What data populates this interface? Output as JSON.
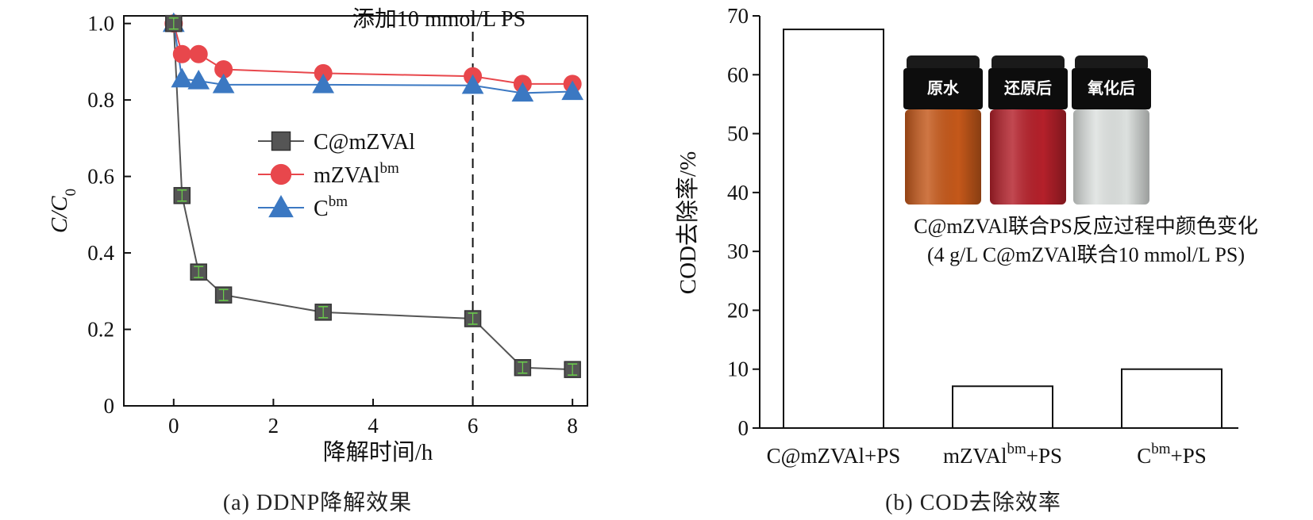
{
  "chart_data": [
    {
      "type": "line",
      "x": [
        0,
        0.167,
        0.5,
        1,
        3,
        6,
        7,
        8
      ],
      "xlabel": "降解时间/h",
      "ylabel": "C/C0",
      "xlim": [
        -1,
        8.3
      ],
      "ylim": [
        0,
        1.02
      ],
      "x_ticks": [
        "0",
        "2",
        "4",
        "6",
        "8"
      ],
      "y_ticks": [
        "0",
        "0.2",
        "0.4",
        "0.6",
        "0.8",
        "1.0"
      ],
      "series": [
        {
          "name": "C@mZVAl",
          "marker": "square",
          "color": "#555555",
          "line_color": "#555555",
          "values": [
            1.0,
            0.55,
            0.35,
            0.29,
            0.245,
            0.228,
            0.1,
            0.095
          ]
        },
        {
          "name": "mZVAl",
          "name_sup": "bm",
          "marker": "circle",
          "color": "#e8474c",
          "line_color": "#e8474c",
          "values": [
            1.0,
            0.92,
            0.92,
            0.88,
            0.87,
            0.862,
            0.842,
            0.842
          ]
        },
        {
          "name": "C",
          "name_sup": "bm",
          "marker": "triangle",
          "color": "#3b78c2",
          "line_color": "#3b78c2",
          "values": [
            1.0,
            0.855,
            0.85,
            0.84,
            0.84,
            0.838,
            0.818,
            0.822
          ]
        }
      ],
      "vline": {
        "x": 6,
        "label": "添加10 mmol/L PS"
      },
      "legend_position": "center",
      "grid": false,
      "caption": "(a) DDNP降解效果"
    },
    {
      "type": "bar",
      "categories": [
        "C@mZVAl+PS",
        "mZVAl+PS",
        "C+PS"
      ],
      "category_parts": [
        {
          "base": "C@mZVAl+PS",
          "sup": "",
          "tail": ""
        },
        {
          "base": "mZVAl",
          "sup": "bm",
          "tail": "+PS"
        },
        {
          "base": "C",
          "sup": "bm",
          "tail": "+PS"
        }
      ],
      "values": [
        67.7,
        7.1,
        10.0
      ],
      "ylabel": "COD去除率/%",
      "ylim": [
        0,
        70
      ],
      "y_ticks": [
        "0",
        "10",
        "20",
        "30",
        "40",
        "50",
        "60",
        "70"
      ],
      "bar_color": "#ffffff",
      "bar_edge": "#111111",
      "inset": {
        "vials": [
          {
            "label": "原水",
            "color": "#c4581a"
          },
          {
            "label": "还原后",
            "color": "#b4202a"
          },
          {
            "label": "氧化后",
            "color": "#dde1df"
          }
        ],
        "caption_line1": "C@mZVAl联合PS反应过程中颜色变化",
        "caption_line2": "(4 g/L C@mZVAl联合10 mmol/L PS)"
      },
      "caption": "(b) COD去除效率"
    }
  ]
}
